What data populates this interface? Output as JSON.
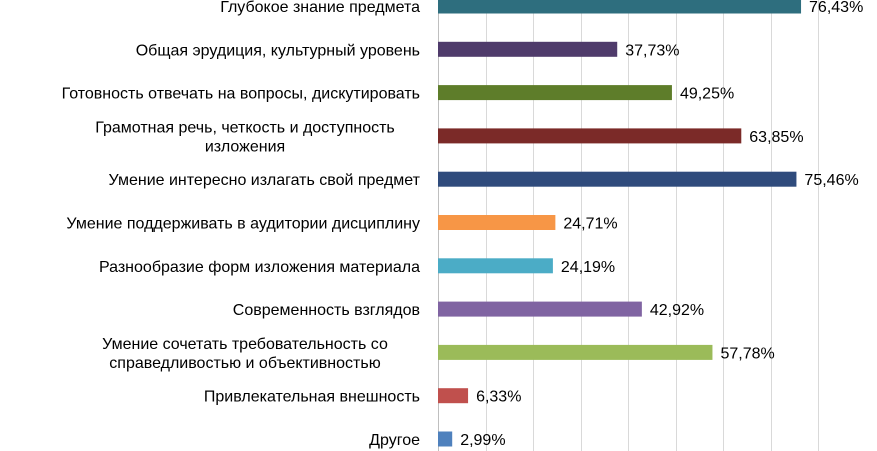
{
  "chart_data": {
    "type": "bar",
    "orientation": "horizontal",
    "categories": [
      [
        "Глубокое знание предмета"
      ],
      [
        "Общая эрудиция, культурный уровень"
      ],
      [
        "Готовность отвечать на вопросы, дискутировать"
      ],
      [
        "Грамотная речь, четкость и доступность",
        "изложения"
      ],
      [
        "Умение интересно излагать свой предмет"
      ],
      [
        "Умение поддерживать в аудитории дисциплину"
      ],
      [
        "Разнообразие форм изложения материала"
      ],
      [
        "Современность взглядов"
      ],
      [
        "Умение сочетать требовательность со",
        "справедливостью и объективностью"
      ],
      [
        "Привлекательная внешность"
      ],
      [
        "Другое"
      ]
    ],
    "values": [
      76.43,
      37.73,
      49.25,
      63.85,
      75.46,
      24.71,
      24.19,
      42.92,
      57.78,
      6.33,
      2.99
    ],
    "data_labels": [
      "76,43%",
      "37,73%",
      "49,25%",
      "63,85%",
      "75,46%",
      "24,71%",
      "24,19%",
      "42,92%",
      "57,78%",
      "6,33%",
      "2,99%"
    ],
    "colors": [
      "#2e6e7e",
      "#4f3b6b",
      "#5e7d2a",
      "#7b2a28",
      "#2f4b7c",
      "#f79646",
      "#4bacc6",
      "#8064a2",
      "#9bbb59",
      "#c0504d",
      "#4f81bd"
    ],
    "xlim": [
      0,
      80
    ],
    "x_gridlines": [
      0,
      10,
      20,
      30,
      40,
      50,
      60,
      70,
      80
    ],
    "grid": true,
    "title": "",
    "xlabel": "",
    "ylabel": "",
    "legend": "none"
  }
}
